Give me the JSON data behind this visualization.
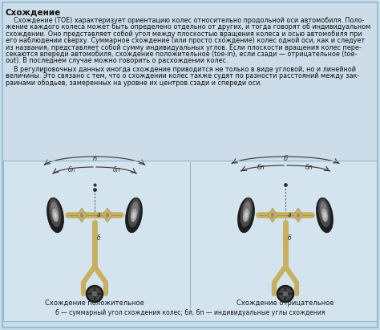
{
  "title": "Схождение",
  "bg_color": "#c8dcea",
  "text_area_color": "#ccdee8",
  "diagram_area_color": "#d5e5f0",
  "border_color": "#8fb8cc",
  "text_color": "#111111",
  "diagram_line_color": "#333333",
  "wheel_dark": "#252525",
  "wheel_mid": "#555555",
  "wheel_light": "#909090",
  "axle_color": "#c8b060",
  "axle_edge": "#a08830",
  "caption_left": "Схождение положительное",
  "caption_right": "Схождение отрицательное",
  "footer": "б — суммарный угол схождения колес; бл, бп — индивидуальные углы схождения",
  "body1": [
    "    Схождение (TOE) характеризует ориентацию колес относительно продольной оси автомобиля. Поло-",
    "жение каждого колеса может быть определено отдельно от других, и тогда говорят об индивидуальном",
    "схождении. Оно представляет собой угол между плоскостью вращения колеса и осью автомобиля при",
    "его наблюдении сверху. Суммарное схождение (или просто схождение) колес одной оси, как и следует",
    "из названия, представляет собой сумму индивидуальных углов. Если плоскости вращения колес пере-",
    "секаются впереди автомобиля, схождение положительное (toe-in), если сзади — отрицательное (toe-",
    "out). В последнем случае можно говорить о расхождении колес."
  ],
  "body2": [
    "    В регулировочных данных иногда схождение приводится не только в виде угловой, но и линейной",
    "величины. Это связано с тем, что о схождении колес также судят по разности расстояний между зак-",
    "раинами ободьев, замеренных на уровне их центров сзади и спереди оси."
  ],
  "font_size_title": 7.5,
  "font_size_body": 5.8,
  "font_size_label": 5.5,
  "font_size_caption": 6.0,
  "font_size_footer": 5.5
}
